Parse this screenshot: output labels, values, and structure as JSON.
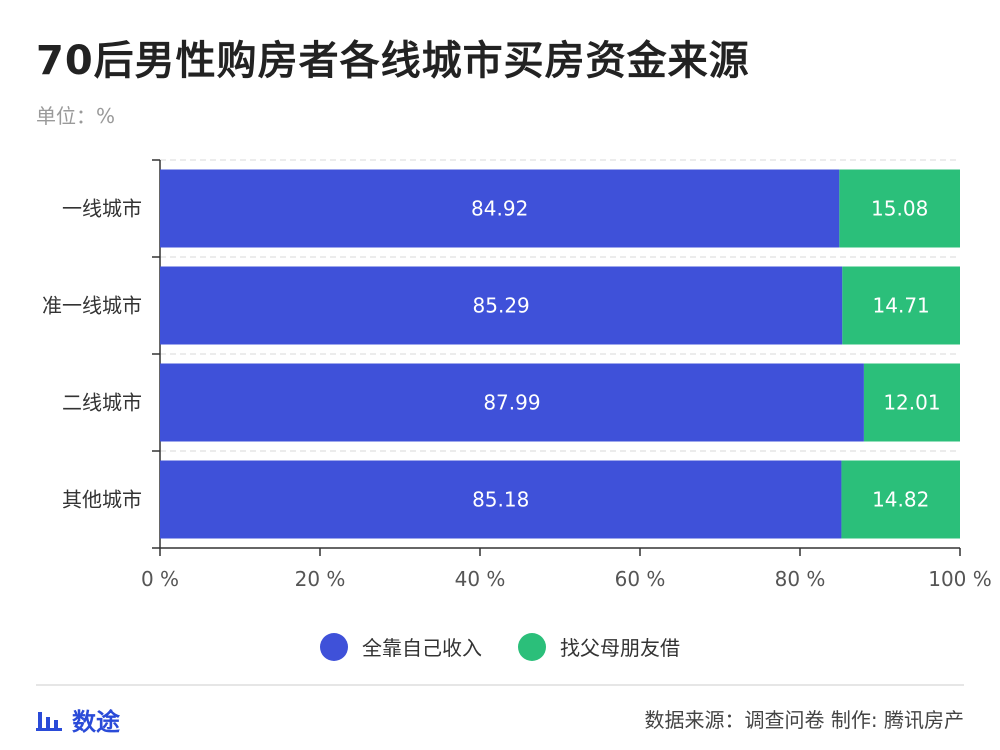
{
  "title": "70后男性购房者各线城市买房资金来源",
  "unit": "单位：%",
  "chart_data": {
    "type": "bar",
    "orientation": "horizontal",
    "stacked": true,
    "categories": [
      "一线城市",
      "准一线城市",
      "二线城市",
      "其他城市"
    ],
    "series": [
      {
        "name": "全靠自己收入",
        "values": [
          84.92,
          85.29,
          87.99,
          85.18
        ],
        "color": "#3f51d9"
      },
      {
        "name": "找父母朋友借",
        "values": [
          15.08,
          14.71,
          12.01,
          14.82
        ],
        "color": "#2bbf7a"
      }
    ],
    "xlim": [
      0,
      100
    ],
    "xticks": [
      "0 %",
      "20 %",
      "40 %",
      "60 %",
      "80 %",
      "100 %"
    ],
    "grid": "horizontal dashed",
    "legend": "bottom-center"
  },
  "footer": {
    "brand": "数途",
    "source": "数据来源：调查问卷  制作: 腾讯房产"
  }
}
